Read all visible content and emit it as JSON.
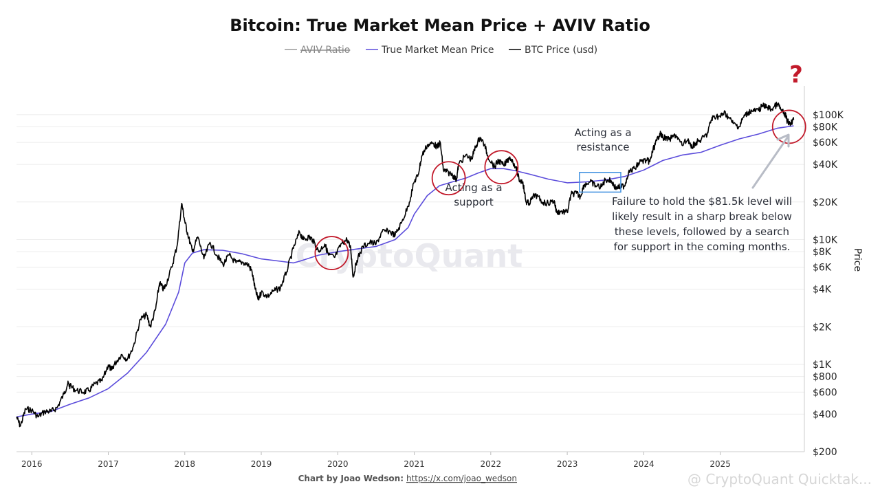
{
  "chart_data": {
    "type": "line",
    "title": "Bitcoin: True Market Mean Price + AVIV Ratio",
    "legend": [
      {
        "name": "AVIV Ratio",
        "color": "#999999",
        "hidden": true
      },
      {
        "name": "True Market Mean Price",
        "color": "#5b4cdb"
      },
      {
        "name": "BTC Price (usd)",
        "color": "#000000"
      }
    ],
    "legend_placement": "top-center",
    "ylabel": "Price",
    "yscale": "log",
    "ylim": [
      200,
      170000
    ],
    "y_ticks": [
      {
        "value": 200,
        "label": "$200"
      },
      {
        "value": 400,
        "label": "$400"
      },
      {
        "value": 600,
        "label": "$600"
      },
      {
        "value": 800,
        "label": "$800"
      },
      {
        "value": 1000,
        "label": "$1K"
      },
      {
        "value": 2000,
        "label": "$2K"
      },
      {
        "value": 4000,
        "label": "$4K"
      },
      {
        "value": 6000,
        "label": "$6K"
      },
      {
        "value": 8000,
        "label": "$8K"
      },
      {
        "value": 10000,
        "label": "$10K"
      },
      {
        "value": 20000,
        "label": "$20K"
      },
      {
        "value": 40000,
        "label": "$40K"
      },
      {
        "value": 60000,
        "label": "$60K"
      },
      {
        "value": 80000,
        "label": "$80K"
      },
      {
        "value": 100000,
        "label": "$100K"
      }
    ],
    "xlim": [
      2015.8,
      2026.1
    ],
    "x_ticks": [
      {
        "value": 2016,
        "label": "2016"
      },
      {
        "value": 2017,
        "label": "2017"
      },
      {
        "value": 2018,
        "label": "2018"
      },
      {
        "value": 2019,
        "label": "2019"
      },
      {
        "value": 2020,
        "label": "2020"
      },
      {
        "value": 2021,
        "label": "2021"
      },
      {
        "value": 2022,
        "label": "2022"
      },
      {
        "value": 2023,
        "label": "2023"
      },
      {
        "value": 2024,
        "label": "2024"
      },
      {
        "value": 2025,
        "label": "2025"
      }
    ],
    "grid": true,
    "series": [
      {
        "name": "BTC Price (usd)",
        "color": "#000000",
        "points": [
          [
            2015.8,
            380
          ],
          [
            2015.85,
            320
          ],
          [
            2015.92,
            440
          ],
          [
            2016.0,
            430
          ],
          [
            2016.08,
            380
          ],
          [
            2016.17,
            420
          ],
          [
            2016.25,
            420
          ],
          [
            2016.33,
            450
          ],
          [
            2016.42,
            580
          ],
          [
            2016.47,
            700
          ],
          [
            2016.5,
            670
          ],
          [
            2016.58,
            620
          ],
          [
            2016.67,
            600
          ],
          [
            2016.75,
            620
          ],
          [
            2016.83,
            700
          ],
          [
            2016.92,
            740
          ],
          [
            2017.0,
            990
          ],
          [
            2017.04,
            900
          ],
          [
            2017.08,
            1000
          ],
          [
            2017.17,
            1200
          ],
          [
            2017.25,
            1100
          ],
          [
            2017.33,
            1400
          ],
          [
            2017.42,
            2300
          ],
          [
            2017.5,
            2500
          ],
          [
            2017.55,
            2000
          ],
          [
            2017.62,
            2800
          ],
          [
            2017.67,
            4500
          ],
          [
            2017.72,
            4000
          ],
          [
            2017.75,
            4300
          ],
          [
            2017.83,
            6000
          ],
          [
            2017.9,
            9000
          ],
          [
            2017.96,
            19500
          ],
          [
            2018.0,
            14000
          ],
          [
            2018.04,
            11000
          ],
          [
            2018.1,
            8000
          ],
          [
            2018.17,
            10500
          ],
          [
            2018.25,
            7000
          ],
          [
            2018.33,
            9500
          ],
          [
            2018.42,
            7500
          ],
          [
            2018.5,
            6300
          ],
          [
            2018.58,
            7500
          ],
          [
            2018.67,
            6500
          ],
          [
            2018.75,
            6600
          ],
          [
            2018.83,
            6300
          ],
          [
            2018.88,
            5500
          ],
          [
            2018.92,
            4000
          ],
          [
            2018.96,
            3300
          ],
          [
            2019.0,
            3800
          ],
          [
            2019.08,
            3500
          ],
          [
            2019.17,
            3900
          ],
          [
            2019.25,
            4100
          ],
          [
            2019.33,
            5500
          ],
          [
            2019.42,
            8500
          ],
          [
            2019.5,
            11500
          ],
          [
            2019.55,
            10000
          ],
          [
            2019.62,
            10500
          ],
          [
            2019.67,
            10000
          ],
          [
            2019.75,
            8000
          ],
          [
            2019.83,
            9200
          ],
          [
            2019.88,
            7500
          ],
          [
            2019.96,
            7200
          ],
          [
            2020.05,
            9300
          ],
          [
            2020.12,
            10000
          ],
          [
            2020.17,
            8500
          ],
          [
            2020.2,
            5000
          ],
          [
            2020.25,
            6800
          ],
          [
            2020.33,
            8800
          ],
          [
            2020.42,
            9500
          ],
          [
            2020.5,
            9200
          ],
          [
            2020.58,
            11500
          ],
          [
            2020.67,
            11700
          ],
          [
            2020.75,
            10800
          ],
          [
            2020.83,
            13500
          ],
          [
            2020.92,
            18500
          ],
          [
            2021.0,
            29000
          ],
          [
            2021.05,
            33000
          ],
          [
            2021.1,
            47000
          ],
          [
            2021.17,
            57000
          ],
          [
            2021.25,
            59000
          ],
          [
            2021.3,
            55000
          ],
          [
            2021.34,
            60000
          ],
          [
            2021.38,
            36000
          ],
          [
            2021.42,
            35000
          ],
          [
            2021.5,
            33000
          ],
          [
            2021.55,
            30000
          ],
          [
            2021.58,
            40000
          ],
          [
            2021.67,
            47000
          ],
          [
            2021.75,
            44000
          ],
          [
            2021.8,
            55000
          ],
          [
            2021.86,
            66000
          ],
          [
            2021.92,
            57000
          ],
          [
            2021.96,
            47000
          ],
          [
            2022.05,
            38000
          ],
          [
            2022.1,
            43000
          ],
          [
            2022.17,
            39000
          ],
          [
            2022.25,
            46000
          ],
          [
            2022.33,
            38000
          ],
          [
            2022.37,
            30000
          ],
          [
            2022.42,
            29000
          ],
          [
            2022.46,
            20000
          ],
          [
            2022.5,
            19500
          ],
          [
            2022.58,
            23000
          ],
          [
            2022.67,
            20000
          ],
          [
            2022.75,
            19500
          ],
          [
            2022.83,
            20500
          ],
          [
            2022.86,
            16500
          ],
          [
            2022.92,
            16800
          ],
          [
            2023.0,
            16500
          ],
          [
            2023.05,
            23000
          ],
          [
            2023.12,
            23500
          ],
          [
            2023.17,
            22000
          ],
          [
            2023.22,
            27500
          ],
          [
            2023.3,
            29000
          ],
          [
            2023.37,
            27000
          ],
          [
            2023.45,
            26500
          ],
          [
            2023.5,
            30500
          ],
          [
            2023.58,
            29300
          ],
          [
            2023.63,
            26000
          ],
          [
            2023.7,
            26500
          ],
          [
            2023.75,
            27000
          ],
          [
            2023.8,
            34500
          ],
          [
            2023.88,
            37000
          ],
          [
            2023.96,
            42500
          ],
          [
            2024.04,
            43000
          ],
          [
            2024.08,
            42000
          ],
          [
            2024.12,
            52000
          ],
          [
            2024.17,
            62000
          ],
          [
            2024.21,
            71000
          ],
          [
            2024.25,
            66000
          ],
          [
            2024.33,
            63000
          ],
          [
            2024.42,
            69000
          ],
          [
            2024.5,
            57000
          ],
          [
            2024.58,
            64000
          ],
          [
            2024.62,
            54000
          ],
          [
            2024.67,
            59000
          ],
          [
            2024.75,
            63000
          ],
          [
            2024.83,
            70000
          ],
          [
            2024.88,
            90000
          ],
          [
            2024.92,
            98000
          ],
          [
            2025.0,
            96000
          ],
          [
            2025.05,
            104000
          ],
          [
            2025.1,
            97000
          ],
          [
            2025.17,
            85000
          ],
          [
            2025.25,
            80000
          ],
          [
            2025.3,
            95000
          ],
          [
            2025.37,
            105000
          ],
          [
            2025.42,
            107000
          ],
          [
            2025.5,
            108000
          ],
          [
            2025.55,
            118000
          ],
          [
            2025.62,
            115000
          ],
          [
            2025.67,
            110000
          ],
          [
            2025.75,
            122000
          ],
          [
            2025.8,
            108000
          ],
          [
            2025.85,
            100000
          ],
          [
            2025.88,
            88000
          ],
          [
            2025.92,
            86000
          ],
          [
            2025.96,
            91000
          ]
        ]
      },
      {
        "name": "True Market Mean Price",
        "color": "#5b4cdb",
        "points": [
          [
            2015.8,
            380
          ],
          [
            2016.0,
            400
          ],
          [
            2016.25,
            420
          ],
          [
            2016.5,
            480
          ],
          [
            2016.75,
            540
          ],
          [
            2017.0,
            640
          ],
          [
            2017.25,
            850
          ],
          [
            2017.5,
            1250
          ],
          [
            2017.75,
            2100
          ],
          [
            2017.92,
            3800
          ],
          [
            2018.0,
            6500
          ],
          [
            2018.1,
            7800
          ],
          [
            2018.25,
            8300
          ],
          [
            2018.5,
            8200
          ],
          [
            2018.75,
            7700
          ],
          [
            2019.0,
            7000
          ],
          [
            2019.25,
            6700
          ],
          [
            2019.42,
            6500
          ],
          [
            2019.5,
            6700
          ],
          [
            2019.75,
            7500
          ],
          [
            2020.0,
            8000
          ],
          [
            2020.25,
            8400
          ],
          [
            2020.5,
            8800
          ],
          [
            2020.75,
            10000
          ],
          [
            2020.92,
            12500
          ],
          [
            2021.0,
            16000
          ],
          [
            2021.17,
            22500
          ],
          [
            2021.33,
            27000
          ],
          [
            2021.5,
            29000
          ],
          [
            2021.67,
            31000
          ],
          [
            2021.83,
            34000
          ],
          [
            2022.0,
            37000
          ],
          [
            2022.17,
            37000
          ],
          [
            2022.33,
            35500
          ],
          [
            2022.5,
            33500
          ],
          [
            2022.75,
            30500
          ],
          [
            2023.0,
            28500
          ],
          [
            2023.25,
            29000
          ],
          [
            2023.5,
            30000
          ],
          [
            2023.75,
            32000
          ],
          [
            2024.0,
            36000
          ],
          [
            2024.25,
            43000
          ],
          [
            2024.5,
            47500
          ],
          [
            2024.75,
            50000
          ],
          [
            2025.0,
            57000
          ],
          [
            2025.25,
            64000
          ],
          [
            2025.5,
            70000
          ],
          [
            2025.75,
            78000
          ],
          [
            2025.96,
            81500
          ]
        ]
      }
    ],
    "annotations": [
      {
        "text": [
          "Acting as a",
          "support"
        ],
        "anchor": [
          2021.72,
          22500
        ]
      },
      {
        "text": [
          "Acting as a",
          "resistance"
        ],
        "anchor": [
          2023.42,
          57000
        ]
      },
      {
        "text": [
          "Failure to hold the $81.5k level will",
          "likely result in a sharp break below",
          "these levels, followed by a search",
          "for support in the coming months."
        ],
        "anchor": [
          2025.07,
          16000
        ]
      }
    ],
    "highlight_circles": [
      {
        "at": [
          2019.92,
          7800
        ],
        "color": "#c21a2b"
      },
      {
        "at": [
          2021.45,
          31000
        ],
        "color": "#c21a2b"
      },
      {
        "at": [
          2022.14,
          38000
        ],
        "color": "#c21a2b"
      },
      {
        "at": [
          2025.9,
          80000
        ],
        "color": "#c21a2b"
      }
    ],
    "highlight_box": {
      "x": [
        2023.16,
        2023.7
      ],
      "y": [
        24000,
        34500
      ],
      "color": "#3d8fe0"
    },
    "question_mark": "?",
    "watermark": "CryptoQuant",
    "credit_label": "Chart by Joao Wedson:",
    "credit_link": "https://x.com/joao_wedson",
    "corner_watermark": "@ CryptoQuant Quicktak..."
  }
}
